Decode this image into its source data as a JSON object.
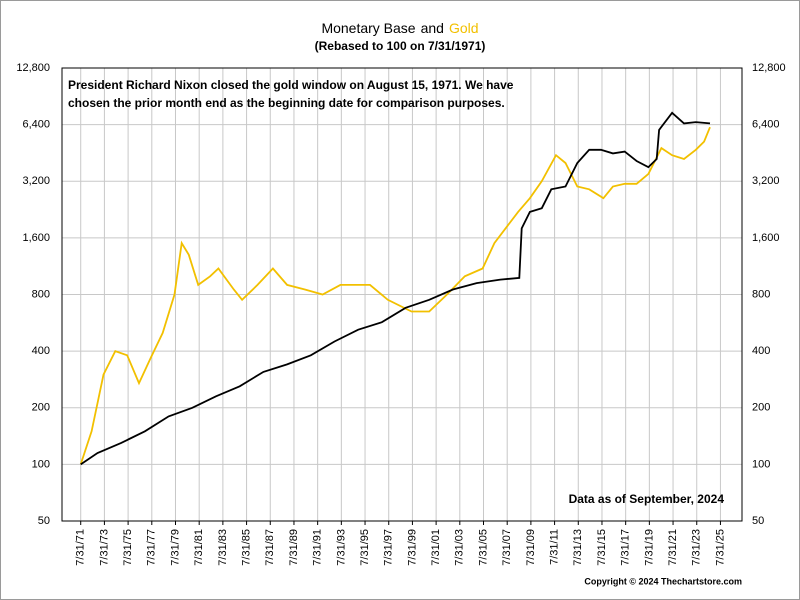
{
  "chart_data": {
    "type": "line",
    "title_joiner": "and",
    "subtitle": "(Rebased to 100 on 7/31/1971)",
    "annotation_lines": [
      "President Richard Nixon closed the gold window on August 15, 1971.  We have",
      "chosen the prior month end as the beginning date for comparison purposes."
    ],
    "data_note": "Data as of September, 2024",
    "copyright": "Copyright © 2024 Thechartstore.com",
    "log_scale": true,
    "grid": true,
    "xlim": [
      1970,
      2027.4
    ],
    "xticks": [
      {
        "value": 1971.58,
        "label": "7/31/71"
      },
      {
        "value": 1973.58,
        "label": "7/31/73"
      },
      {
        "value": 1975.58,
        "label": "7/31/75"
      },
      {
        "value": 1977.58,
        "label": "7/31/77"
      },
      {
        "value": 1979.58,
        "label": "7/31/79"
      },
      {
        "value": 1981.58,
        "label": "7/31/81"
      },
      {
        "value": 1983.58,
        "label": "7/31/83"
      },
      {
        "value": 1985.58,
        "label": "7/31/85"
      },
      {
        "value": 1987.58,
        "label": "7/31/87"
      },
      {
        "value": 1989.58,
        "label": "7/31/89"
      },
      {
        "value": 1991.58,
        "label": "7/31/91"
      },
      {
        "value": 1993.58,
        "label": "7/31/93"
      },
      {
        "value": 1995.58,
        "label": "7/31/95"
      },
      {
        "value": 1997.58,
        "label": "7/31/97"
      },
      {
        "value": 1999.58,
        "label": "7/31/99"
      },
      {
        "value": 2001.58,
        "label": "7/31/01"
      },
      {
        "value": 2003.58,
        "label": "7/31/03"
      },
      {
        "value": 2005.58,
        "label": "7/31/05"
      },
      {
        "value": 2007.58,
        "label": "7/31/07"
      },
      {
        "value": 2009.58,
        "label": "7/31/09"
      },
      {
        "value": 2011.58,
        "label": "7/31/11"
      },
      {
        "value": 2013.58,
        "label": "7/31/13"
      },
      {
        "value": 2015.58,
        "label": "7/31/15"
      },
      {
        "value": 2017.58,
        "label": "7/31/17"
      },
      {
        "value": 2019.58,
        "label": "7/31/19"
      },
      {
        "value": 2021.58,
        "label": "7/31/21"
      },
      {
        "value": 2023.58,
        "label": "7/31/23"
      },
      {
        "value": 2025.58,
        "label": "7/31/25"
      }
    ],
    "ylim": [
      50,
      12800
    ],
    "yticks": [
      50,
      100,
      200,
      400,
      800,
      {
        "value": 1600,
        "label": "1,600"
      },
      {
        "value": 3200,
        "label": "3,200"
      },
      {
        "value": 6400,
        "label": "6,400"
      },
      {
        "value": 12800,
        "label": "12,800"
      }
    ],
    "series": [
      {
        "name": "Monetary Base",
        "color": "#000000",
        "x": [
          1971.58,
          1973,
          1975,
          1977,
          1979,
          1981,
          1983,
          1985,
          1987,
          1989,
          1991,
          1993,
          1995,
          1997,
          1999,
          2001,
          2003,
          2005,
          2007,
          2008.6,
          2008.8,
          2009.5,
          2010.5,
          2011.3,
          2012.5,
          2013.5,
          2014.5,
          2015.5,
          2016.5,
          2017.5,
          2018.5,
          2019.5,
          2020.2,
          2020.4,
          2021.5,
          2022.5,
          2023.5,
          2024.7
        ],
        "values": [
          100,
          115,
          130,
          150,
          180,
          200,
          230,
          260,
          310,
          340,
          380,
          450,
          520,
          570,
          680,
          750,
          850,
          920,
          960,
          980,
          1800,
          2200,
          2300,
          2900,
          3000,
          4000,
          4700,
          4700,
          4500,
          4600,
          4100,
          3800,
          4200,
          6000,
          7400,
          6500,
          6600,
          6500
        ]
      },
      {
        "name": "Gold",
        "color": "#f2c000",
        "x": [
          1971.58,
          1972.5,
          1973.5,
          1974.5,
          1975.5,
          1976.5,
          1977.5,
          1978.5,
          1979.5,
          1980.1,
          1980.7,
          1981.5,
          1982.5,
          1983.2,
          1984.5,
          1985.2,
          1986.5,
          1987.8,
          1989,
          1990.5,
          1992,
          1993.5,
          1996,
          1997.5,
          1999.5,
          2001,
          2002.5,
          2004,
          2005.5,
          2006.5,
          2008.5,
          2009.5,
          2010.5,
          2011.7,
          2012.5,
          2013.5,
          2014.5,
          2015.7,
          2016.5,
          2017.5,
          2018.5,
          2019.5,
          2020.6,
          2021.5,
          2022.5,
          2023.5,
          2024.2,
          2024.7
        ],
        "values": [
          100,
          150,
          300,
          400,
          380,
          270,
          370,
          500,
          800,
          1500,
          1300,
          900,
          1000,
          1100,
          850,
          750,
          900,
          1100,
          900,
          850,
          800,
          900,
          900,
          750,
          650,
          650,
          800,
          1000,
          1100,
          1500,
          2200,
          2600,
          3200,
          4400,
          4000,
          3000,
          2900,
          2600,
          3000,
          3100,
          3100,
          3500,
          4800,
          4400,
          4200,
          4700,
          5200,
          6200
        ]
      }
    ]
  }
}
